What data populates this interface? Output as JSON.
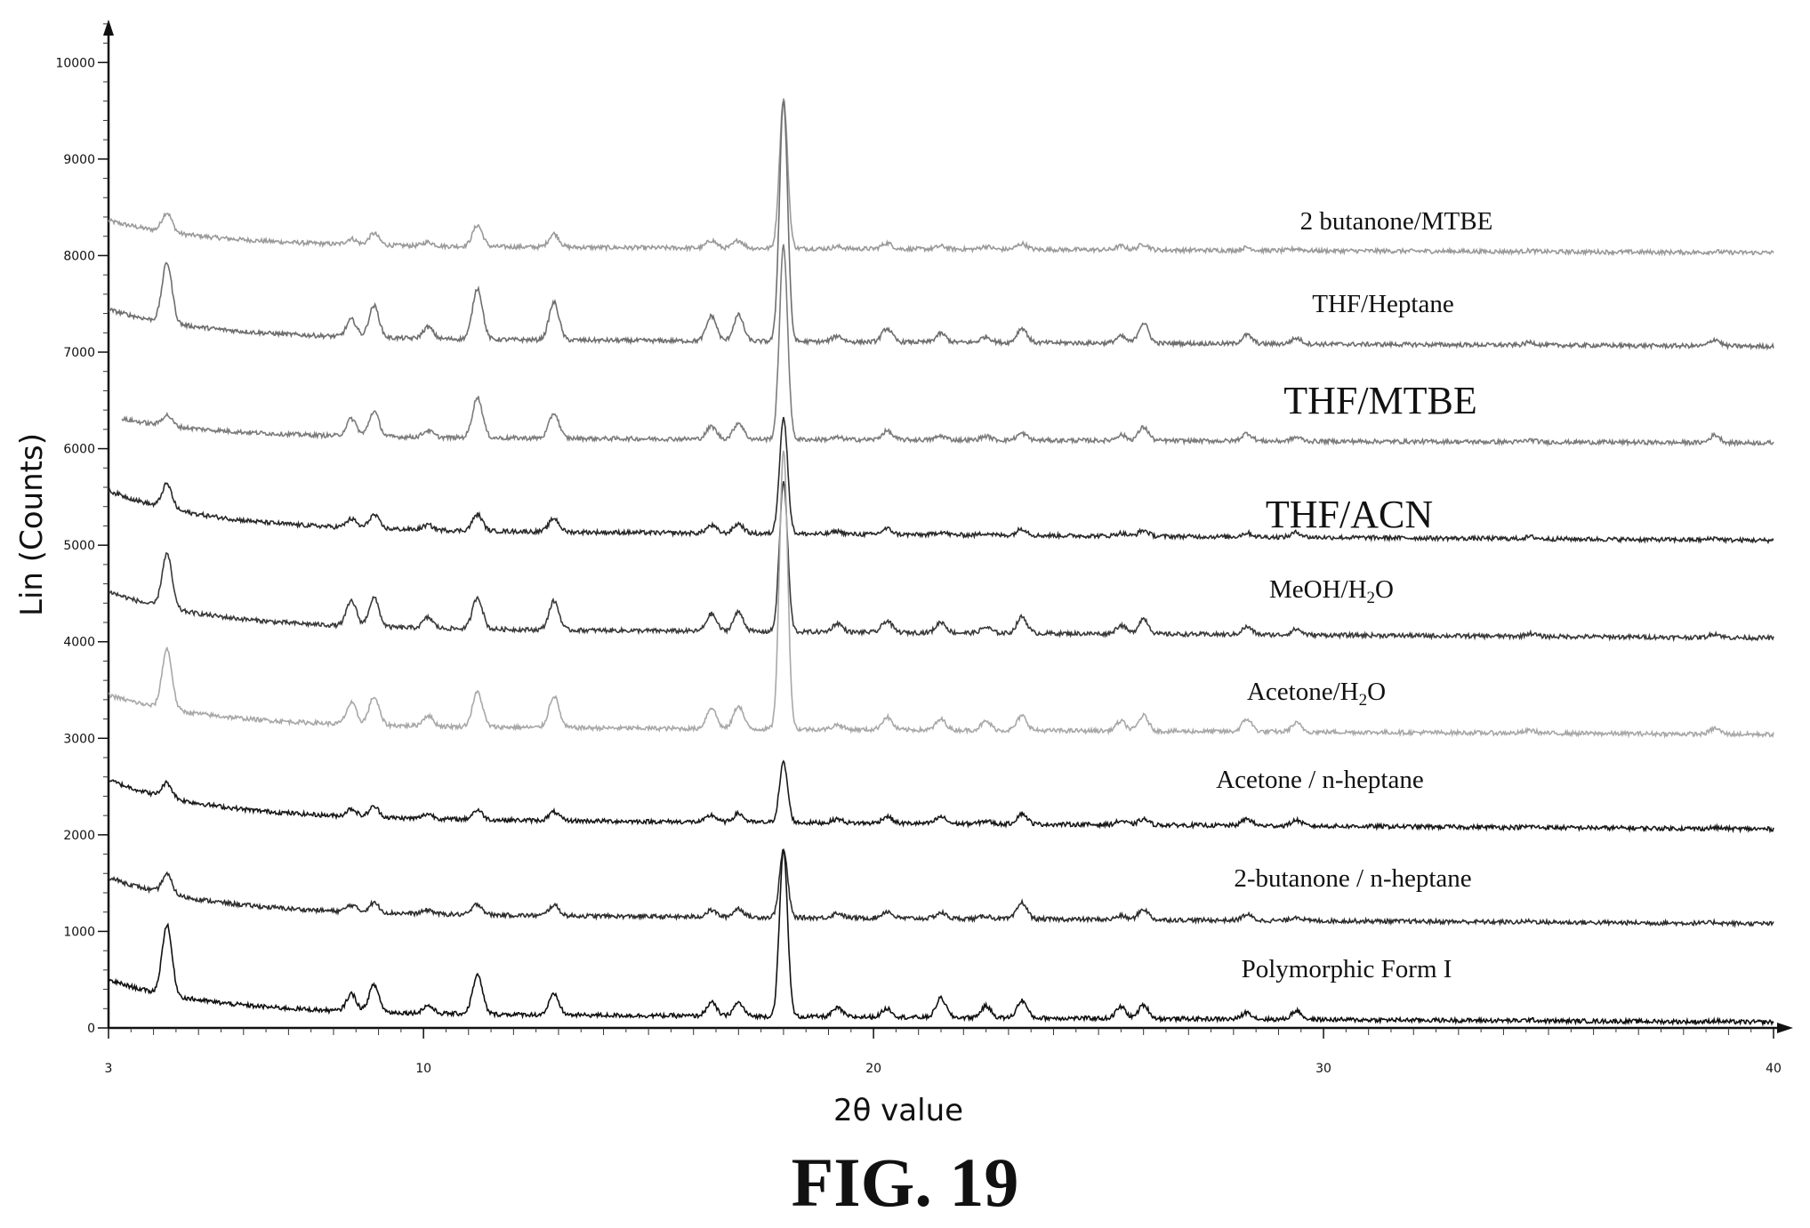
{
  "figure_caption": "FIG. 19",
  "chart_data": {
    "type": "line",
    "title": "",
    "xlabel": "2θ value",
    "ylabel": "Lin (Counts)",
    "xlim": [
      3,
      40
    ],
    "ylim": [
      0,
      10500
    ],
    "x_ticks": [
      3,
      10,
      20,
      30,
      40
    ],
    "y_ticks": [
      0,
      1000,
      2000,
      3000,
      4000,
      5000,
      6000,
      7000,
      8000,
      9000,
      10000
    ],
    "grid": false,
    "legend": "labels placed next to each trace",
    "peak_positions_2theta": [
      4.3,
      8.4,
      8.9,
      10.1,
      11.2,
      12.9,
      16.4,
      17.0,
      18.0,
      19.2,
      20.3,
      21.5,
      22.5,
      23.3,
      25.5,
      26.0,
      28.3,
      29.4,
      34.6,
      38.7
    ],
    "series": [
      {
        "name": "2 butanone/MTBE",
        "color": "#9a9a9a",
        "x_start": 3.0,
        "baseline_start": 8500,
        "baseline_end": 8030,
        "peak_heights": [
          200,
          60,
          120,
          40,
          220,
          140,
          80,
          80,
          1550,
          20,
          60,
          30,
          30,
          60,
          40,
          60,
          30,
          20,
          10,
          10
        ]
      },
      {
        "name": "THF/Heptane",
        "color": "#6e6e6e",
        "x_start": 3.0,
        "baseline_start": 7600,
        "baseline_end": 7060,
        "peak_heights": [
          620,
          180,
          330,
          120,
          530,
          390,
          260,
          270,
          2500,
          60,
          140,
          90,
          60,
          150,
          70,
          210,
          90,
          60,
          30,
          70
        ]
      },
      {
        "name": "THF/MTBE",
        "color": "#7c7c7c",
        "x_start": 3.3,
        "baseline_start": 6450,
        "baseline_end": 6060,
        "peak_heights": [
          110,
          180,
          260,
          70,
          420,
          260,
          130,
          170,
          2000,
          20,
          90,
          40,
          40,
          70,
          60,
          140,
          80,
          40,
          20,
          80
        ]
      },
      {
        "name": "THF/ACN",
        "color": "#2a2a2a",
        "x_start": 3.0,
        "baseline_start": 5780,
        "baseline_end": 5050,
        "peak_heights": [
          250,
          90,
          140,
          50,
          170,
          140,
          80,
          100,
          1200,
          30,
          60,
          30,
          20,
          70,
          30,
          60,
          40,
          50,
          20,
          20
        ]
      },
      {
        "name": "MeOH/H2O",
        "color": "#3a3a3a",
        "x_start": 3.0,
        "baseline_start": 4720,
        "baseline_end": 4040,
        "peak_heights": [
          560,
          260,
          300,
          110,
          330,
          300,
          180,
          200,
          1550,
          90,
          120,
          110,
          60,
          170,
          90,
          160,
          80,
          60,
          30,
          40
        ]
      },
      {
        "name": "Acetone/H2O",
        "color": "#a8a8a8",
        "x_start": 3.0,
        "baseline_start": 3620,
        "baseline_end": 3040,
        "peak_heights": [
          620,
          220,
          290,
          110,
          360,
          330,
          220,
          240,
          2900,
          50,
          130,
          110,
          90,
          150,
          100,
          160,
          130,
          90,
          30,
          60
        ]
      },
      {
        "name": "Acetone / n-heptane",
        "color": "#1a1a1a",
        "x_start": 3.0,
        "baseline_start": 2780,
        "baseline_end": 2060,
        "peak_heights": [
          150,
          80,
          110,
          50,
          100,
          90,
          70,
          90,
          620,
          40,
          70,
          70,
          30,
          110,
          40,
          60,
          70,
          60,
          10,
          10
        ]
      },
      {
        "name": "2-butanone / n-heptane",
        "color": "#2e2e2e",
        "x_start": 3.0,
        "baseline_start": 1760,
        "baseline_end": 1080,
        "peak_heights": [
          200,
          70,
          100,
          40,
          110,
          110,
          70,
          90,
          700,
          50,
          70,
          60,
          30,
          170,
          40,
          110,
          60,
          40,
          10,
          10
        ]
      },
      {
        "name": "Polymorphic Form I",
        "color": "#111111",
        "x_start": 3.0,
        "baseline_start": 680,
        "baseline_end": 60,
        "peak_heights": [
          720,
          180,
          280,
          80,
          400,
          210,
          140,
          140,
          1720,
          90,
          90,
          200,
          120,
          180,
          120,
          140,
          70,
          90,
          10,
          10
        ]
      }
    ],
    "series_labels": [
      {
        "text": "2 butanone/MTBE",
        "size": "medium"
      },
      {
        "text": "THF/Heptane",
        "size": "medium"
      },
      {
        "text": "THF/MTBE",
        "size": "large"
      },
      {
        "text": "THF/ACN",
        "size": "large"
      },
      {
        "text": "MeOH/H",
        "sub": "2",
        "tail": "O",
        "size": "medium"
      },
      {
        "text": "Acetone/H",
        "sub": "2",
        "tail": "O",
        "size": "medium"
      },
      {
        "text": "Acetone / n-heptane",
        "size": "medium"
      },
      {
        "text": "2-butanone / n-heptane",
        "size": "medium"
      },
      {
        "text": "Polymorphic Form I",
        "size": "medium"
      }
    ]
  }
}
